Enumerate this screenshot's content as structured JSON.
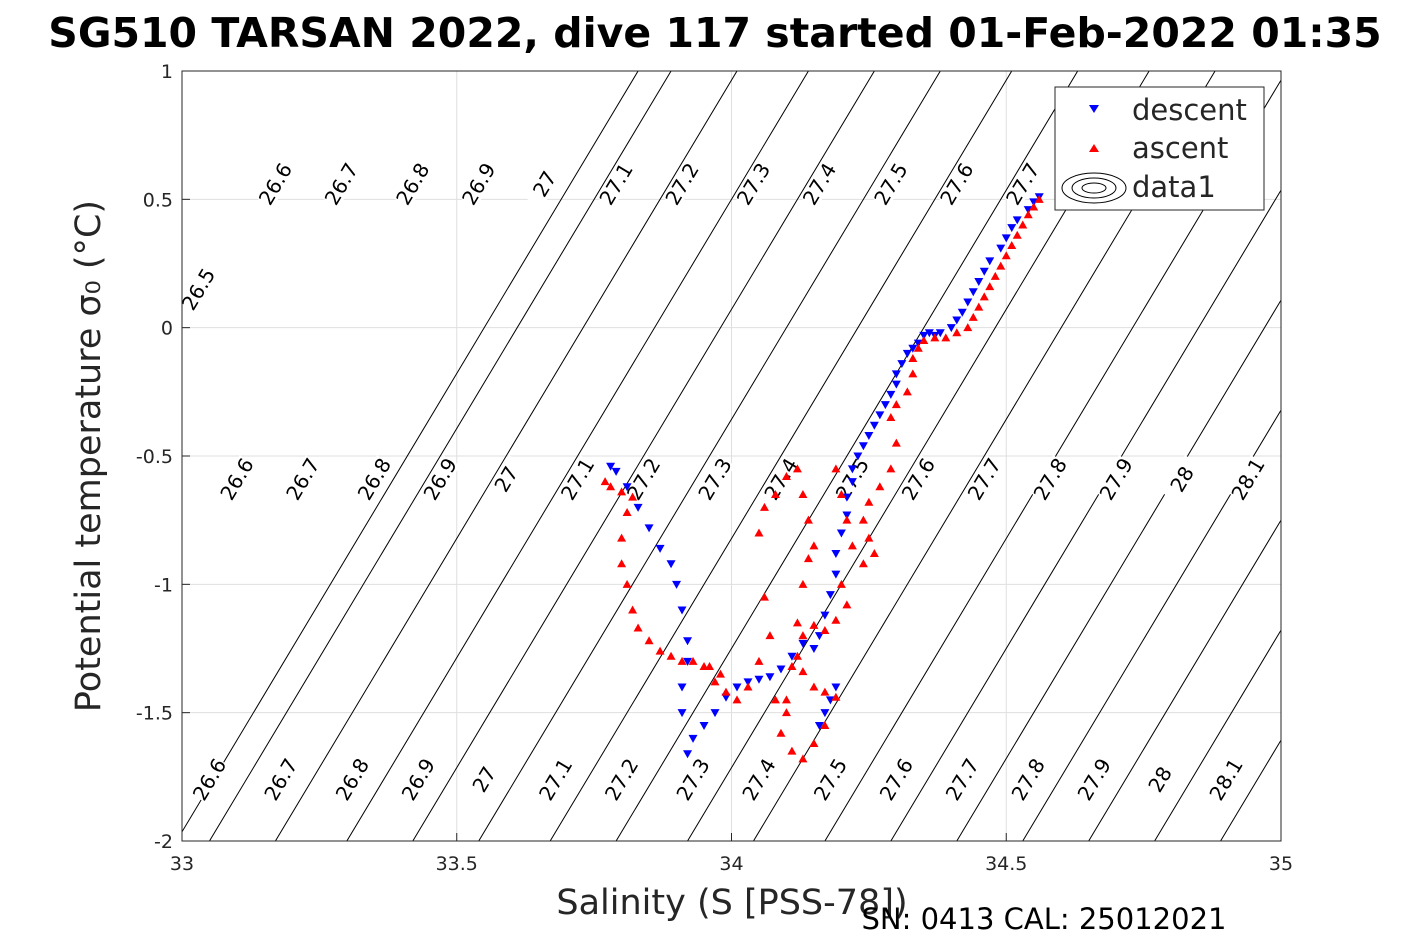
{
  "chart_data": {
    "type": "scatter",
    "title": "SG510 TARSAN 2022, dive 117 started 01-Feb-2022 01:35",
    "xlabel": "Salinity (S [PSS-78])",
    "ylabel": "Potential temperature σ₀ (°C)",
    "footer": "SN: 0413  CAL: 25012021",
    "xlim": [
      33,
      35
    ],
    "ylim": [
      -2,
      1
    ],
    "xticks": [
      33,
      33.5,
      34,
      34.5,
      35
    ],
    "xtick_labels": [
      "33",
      "33.5",
      "34",
      "34.5",
      "35"
    ],
    "yticks": [
      -2,
      -1.5,
      -1,
      -0.5,
      0,
      0.5,
      1
    ],
    "ytick_labels": [
      "-2",
      "-1.5",
      "-1",
      "-0.5",
      "0",
      "0.5",
      "1"
    ],
    "grid": true,
    "legend_position": "top-right",
    "legend": [
      {
        "label": "descent",
        "marker": "triangle-down",
        "color": "#0000ff"
      },
      {
        "label": "ascent",
        "marker": "triangle-up",
        "color": "#ff0000"
      },
      {
        "label": "data1",
        "marker": "contour-ellipses",
        "color": "#000000"
      }
    ],
    "isopycnals": [
      {
        "sigma": "26.5",
        "slope": 0.28,
        "bottom_x": 32.99,
        "labels": [
          {
            "x": 33.03,
            "y": 0.15
          }
        ]
      },
      {
        "sigma": "26.6",
        "slope": 0.28,
        "bottom_x": 33.05,
        "labels": [
          {
            "x": 33.05,
            "y": -1.76
          },
          {
            "x": 33.1,
            "y": -0.59
          },
          {
            "x": 33.17,
            "y": 0.56
          }
        ]
      },
      {
        "sigma": "26.7",
        "slope": 0.28,
        "bottom_x": 33.17,
        "labels": [
          {
            "x": 33.18,
            "y": -1.76
          },
          {
            "x": 33.22,
            "y": -0.59
          },
          {
            "x": 33.29,
            "y": 0.56
          }
        ]
      },
      {
        "sigma": "26.8",
        "slope": 0.28,
        "bottom_x": 33.3,
        "labels": [
          {
            "x": 33.31,
            "y": -1.76
          },
          {
            "x": 33.35,
            "y": -0.59
          },
          {
            "x": 33.42,
            "y": 0.56
          }
        ]
      },
      {
        "sigma": "26.9",
        "slope": 0.28,
        "bottom_x": 33.42,
        "labels": [
          {
            "x": 33.43,
            "y": -1.76
          },
          {
            "x": 33.47,
            "y": -0.59
          },
          {
            "x": 33.54,
            "y": 0.56
          }
        ]
      },
      {
        "sigma": "27",
        "slope": 0.28,
        "bottom_x": 33.54,
        "labels": [
          {
            "x": 33.55,
            "y": -1.76
          },
          {
            "x": 33.59,
            "y": -0.59
          },
          {
            "x": 33.66,
            "y": 0.56
          }
        ]
      },
      {
        "sigma": "27.1",
        "slope": 0.28,
        "bottom_x": 33.67,
        "labels": [
          {
            "x": 33.68,
            "y": -1.76
          },
          {
            "x": 33.72,
            "y": -0.59
          },
          {
            "x": 33.79,
            "y": 0.56
          }
        ]
      },
      {
        "sigma": "27.2",
        "slope": 0.28,
        "bottom_x": 33.79,
        "labels": [
          {
            "x": 33.8,
            "y": -1.76
          },
          {
            "x": 33.84,
            "y": -0.59
          },
          {
            "x": 33.91,
            "y": 0.56
          }
        ]
      },
      {
        "sigma": "27.3",
        "slope": 0.28,
        "bottom_x": 33.92,
        "labels": [
          {
            "x": 33.93,
            "y": -1.76
          },
          {
            "x": 33.97,
            "y": -0.59
          },
          {
            "x": 34.04,
            "y": 0.56
          }
        ]
      },
      {
        "sigma": "27.4",
        "slope": 0.28,
        "bottom_x": 34.04,
        "labels": [
          {
            "x": 34.05,
            "y": -1.76
          },
          {
            "x": 34.09,
            "y": -0.59
          },
          {
            "x": 34.16,
            "y": 0.56
          }
        ]
      },
      {
        "sigma": "27.5",
        "slope": 0.28,
        "bottom_x": 34.17,
        "labels": [
          {
            "x": 34.18,
            "y": -1.76
          },
          {
            "x": 34.22,
            "y": -0.59
          },
          {
            "x": 34.29,
            "y": 0.56
          }
        ]
      },
      {
        "sigma": "27.6",
        "slope": 0.28,
        "bottom_x": 34.29,
        "labels": [
          {
            "x": 34.3,
            "y": -1.76
          },
          {
            "x": 34.34,
            "y": -0.59
          },
          {
            "x": 34.41,
            "y": 0.56
          }
        ]
      },
      {
        "sigma": "27.7",
        "slope": 0.28,
        "bottom_x": 34.41,
        "labels": [
          {
            "x": 34.42,
            "y": -1.76
          },
          {
            "x": 34.46,
            "y": -0.59
          },
          {
            "x": 34.53,
            "y": 0.56
          }
        ]
      },
      {
        "sigma": "27.8",
        "slope": 0.28,
        "bottom_x": 34.53,
        "labels": [
          {
            "x": 34.54,
            "y": -1.76
          },
          {
            "x": 34.58,
            "y": -0.59
          }
        ]
      },
      {
        "sigma": "27.9",
        "slope": 0.28,
        "bottom_x": 34.65,
        "labels": [
          {
            "x": 34.66,
            "y": -1.76
          },
          {
            "x": 34.7,
            "y": -0.59
          }
        ]
      },
      {
        "sigma": "28",
        "slope": 0.28,
        "bottom_x": 34.77,
        "labels": [
          {
            "x": 34.78,
            "y": -1.76
          },
          {
            "x": 34.82,
            "y": -0.59
          }
        ]
      },
      {
        "sigma": "28.1",
        "slope": 0.28,
        "bottom_x": 34.89,
        "labels": [
          {
            "x": 34.9,
            "y": -1.76
          },
          {
            "x": 34.94,
            "y": -0.59
          }
        ]
      }
    ],
    "series": [
      {
        "name": "descent",
        "marker": "triangle-down",
        "color": "#0000ff",
        "points": [
          [
            34.56,
            0.51
          ],
          [
            34.55,
            0.49
          ],
          [
            34.54,
            0.46
          ],
          [
            34.52,
            0.42
          ],
          [
            34.51,
            0.39
          ],
          [
            34.5,
            0.35
          ],
          [
            34.49,
            0.31
          ],
          [
            34.47,
            0.26
          ],
          [
            34.46,
            0.22
          ],
          [
            34.45,
            0.18
          ],
          [
            34.44,
            0.14
          ],
          [
            34.43,
            0.1
          ],
          [
            34.42,
            0.06
          ],
          [
            34.41,
            0.03
          ],
          [
            34.4,
            0.0
          ],
          [
            34.38,
            -0.02
          ],
          [
            34.37,
            -0.03
          ],
          [
            34.36,
            -0.02
          ],
          [
            34.35,
            -0.03
          ],
          [
            34.34,
            -0.06
          ],
          [
            34.33,
            -0.08
          ],
          [
            34.32,
            -0.1
          ],
          [
            34.31,
            -0.14
          ],
          [
            34.3,
            -0.18
          ],
          [
            34.3,
            -0.22
          ],
          [
            34.29,
            -0.26
          ],
          [
            34.28,
            -0.3
          ],
          [
            34.27,
            -0.34
          ],
          [
            34.26,
            -0.38
          ],
          [
            34.25,
            -0.42
          ],
          [
            34.24,
            -0.46
          ],
          [
            34.23,
            -0.5
          ],
          [
            34.22,
            -0.55
          ],
          [
            34.22,
            -0.6
          ],
          [
            34.21,
            -0.66
          ],
          [
            34.21,
            -0.73
          ],
          [
            34.2,
            -0.8
          ],
          [
            34.19,
            -0.88
          ],
          [
            34.19,
            -0.96
          ],
          [
            34.18,
            -1.04
          ],
          [
            34.17,
            -1.12
          ],
          [
            34.16,
            -1.2
          ],
          [
            34.15,
            -1.25
          ],
          [
            34.13,
            -1.23
          ],
          [
            34.11,
            -1.28
          ],
          [
            34.09,
            -1.33
          ],
          [
            34.07,
            -1.36
          ],
          [
            34.05,
            -1.37
          ],
          [
            34.03,
            -1.38
          ],
          [
            34.01,
            -1.4
          ],
          [
            33.99,
            -1.44
          ],
          [
            33.97,
            -1.5
          ],
          [
            33.95,
            -1.55
          ],
          [
            33.93,
            -1.6
          ],
          [
            33.92,
            -1.66
          ],
          [
            33.91,
            -1.5
          ],
          [
            33.91,
            -1.4
          ],
          [
            33.92,
            -1.3
          ],
          [
            33.92,
            -1.22
          ],
          [
            33.91,
            -1.1
          ],
          [
            33.9,
            -1.0
          ],
          [
            33.89,
            -0.92
          ],
          [
            33.87,
            -0.86
          ],
          [
            33.85,
            -0.78
          ],
          [
            33.83,
            -0.7
          ],
          [
            33.81,
            -0.62
          ],
          [
            33.79,
            -0.56
          ],
          [
            33.78,
            -0.54
          ],
          [
            34.16,
            -1.55
          ],
          [
            34.17,
            -1.5
          ],
          [
            34.18,
            -1.45
          ],
          [
            34.19,
            -1.4
          ]
        ]
      },
      {
        "name": "ascent",
        "marker": "triangle-up",
        "color": "#ff0000",
        "points": [
          [
            34.56,
            0.5
          ],
          [
            34.55,
            0.47
          ],
          [
            34.54,
            0.44
          ],
          [
            34.53,
            0.4
          ],
          [
            34.52,
            0.36
          ],
          [
            34.51,
            0.32
          ],
          [
            34.5,
            0.28
          ],
          [
            34.49,
            0.24
          ],
          [
            34.48,
            0.2
          ],
          [
            34.47,
            0.16
          ],
          [
            34.46,
            0.12
          ],
          [
            34.45,
            0.08
          ],
          [
            34.44,
            0.04
          ],
          [
            34.43,
            0.0
          ],
          [
            34.41,
            -0.02
          ],
          [
            34.39,
            -0.04
          ],
          [
            34.37,
            -0.04
          ],
          [
            34.35,
            -0.05
          ],
          [
            34.34,
            -0.08
          ],
          [
            34.33,
            -0.12
          ],
          [
            34.33,
            -0.18
          ],
          [
            34.32,
            -0.25
          ],
          [
            34.3,
            -0.3
          ],
          [
            34.29,
            -0.35
          ],
          [
            34.3,
            -0.45
          ],
          [
            34.29,
            -0.55
          ],
          [
            34.27,
            -0.62
          ],
          [
            34.25,
            -0.68
          ],
          [
            34.24,
            -0.75
          ],
          [
            34.25,
            -0.82
          ],
          [
            34.26,
            -0.88
          ],
          [
            34.24,
            -0.92
          ],
          [
            34.22,
            -0.85
          ],
          [
            34.21,
            -0.75
          ],
          [
            34.2,
            -0.65
          ],
          [
            34.19,
            -0.55
          ],
          [
            34.2,
            -1.0
          ],
          [
            34.21,
            -1.08
          ],
          [
            34.19,
            -1.14
          ],
          [
            34.17,
            -1.18
          ],
          [
            34.15,
            -1.16
          ],
          [
            34.13,
            -1.2
          ],
          [
            34.12,
            -1.28
          ],
          [
            34.13,
            -1.34
          ],
          [
            34.15,
            -1.4
          ],
          [
            34.17,
            -1.42
          ],
          [
            34.19,
            -1.44
          ],
          [
            34.17,
            -1.55
          ],
          [
            34.15,
            -1.62
          ],
          [
            34.13,
            -1.68
          ],
          [
            34.11,
            -1.65
          ],
          [
            34.09,
            -1.58
          ],
          [
            34.1,
            -1.45
          ],
          [
            34.11,
            -1.32
          ],
          [
            34.12,
            -1.15
          ],
          [
            34.13,
            -1.0
          ],
          [
            34.14,
            -0.9
          ],
          [
            34.15,
            -0.85
          ],
          [
            34.14,
            -0.75
          ],
          [
            34.13,
            -0.65
          ],
          [
            34.12,
            -0.55
          ],
          [
            34.1,
            -0.58
          ],
          [
            34.08,
            -0.65
          ],
          [
            34.06,
            -0.7
          ],
          [
            34.05,
            -0.8
          ],
          [
            34.06,
            -1.05
          ],
          [
            34.07,
            -1.2
          ],
          [
            34.05,
            -1.3
          ],
          [
            34.03,
            -1.4
          ],
          [
            34.01,
            -1.45
          ],
          [
            33.99,
            -1.42
          ],
          [
            33.97,
            -1.38
          ],
          [
            33.95,
            -1.32
          ],
          [
            33.93,
            -1.3
          ],
          [
            33.91,
            -1.3
          ],
          [
            33.89,
            -1.28
          ],
          [
            33.87,
            -1.26
          ],
          [
            33.85,
            -1.22
          ],
          [
            33.83,
            -1.17
          ],
          [
            33.82,
            -1.1
          ],
          [
            33.81,
            -1.0
          ],
          [
            33.8,
            -0.92
          ],
          [
            33.8,
            -0.82
          ],
          [
            33.81,
            -0.72
          ],
          [
            33.82,
            -0.66
          ],
          [
            33.8,
            -0.64
          ],
          [
            33.78,
            -0.62
          ],
          [
            33.77,
            -0.6
          ],
          [
            33.96,
            -1.32
          ],
          [
            33.98,
            -1.35
          ],
          [
            34.08,
            -1.45
          ],
          [
            34.1,
            -1.5
          ]
        ]
      }
    ]
  }
}
